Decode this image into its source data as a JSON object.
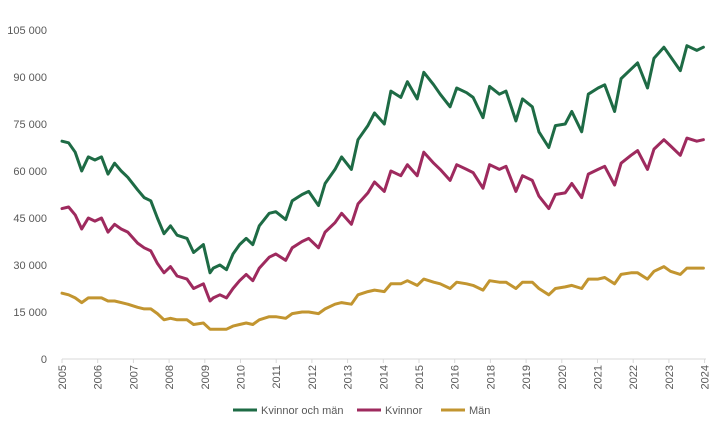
{
  "chart_data": {
    "type": "line",
    "title": "",
    "xlabel": "",
    "ylabel": "",
    "ylim": [
      0,
      105000
    ],
    "yticks": [
      "0",
      "15 000",
      "30 000",
      "45 000",
      "60 000",
      "75 000",
      "90 000",
      "105 000"
    ],
    "ytick_values": [
      0,
      15000,
      30000,
      45000,
      60000,
      75000,
      90000,
      105000
    ],
    "xticks": [
      "2005",
      "2006",
      "2007",
      "2008",
      "2009",
      "2010",
      "2011",
      "2012",
      "2013",
      "2014",
      "2015",
      "2016",
      "2018",
      "2019",
      "2020",
      "2021",
      "2022",
      "2023",
      "2024"
    ],
    "xlim": [
      2005,
      2024.58
    ],
    "grid": false,
    "legend": "bottom",
    "series": [
      {
        "name": "Kvinnor och män",
        "color": "#1e6b45",
        "x": [
          2005.0,
          2005.2,
          2005.4,
          2005.6,
          2005.8,
          2006.0,
          2006.2,
          2006.4,
          2006.6,
          2006.8,
          2007.0,
          2007.3,
          2007.5,
          2007.7,
          2007.9,
          2008.1,
          2008.3,
          2008.5,
          2008.8,
          2009.0,
          2009.3,
          2009.5,
          2009.6,
          2009.8,
          2010.0,
          2010.2,
          2010.4,
          2010.6,
          2010.8,
          2011.0,
          2011.3,
          2011.5,
          2011.8,
          2012.0,
          2012.3,
          2012.5,
          2012.8,
          2013.0,
          2013.3,
          2013.5,
          2013.8,
          2014.0,
          2014.3,
          2014.5,
          2014.8,
          2015.0,
          2015.3,
          2015.5,
          2015.8,
          2016.0,
          2016.3,
          2016.5,
          2016.8,
          2017.0,
          2017.3,
          2017.5,
          2017.8,
          2018.0,
          2018.3,
          2018.5,
          2018.8,
          2019.0,
          2019.3,
          2019.5,
          2019.8,
          2020.0,
          2020.3,
          2020.5,
          2020.8,
          2021.0,
          2021.3,
          2021.5,
          2021.8,
          2022.0,
          2022.3,
          2022.5,
          2022.8,
          2023.0,
          2023.3,
          2023.5,
          2023.8,
          2024.0,
          2024.3,
          2024.5
        ],
        "values": [
          69500,
          69000,
          66000,
          60000,
          64500,
          63500,
          64500,
          59000,
          62500,
          60000,
          58000,
          54000,
          51500,
          50500,
          45000,
          40000,
          42500,
          39500,
          38500,
          34000,
          36500,
          27500,
          29000,
          30000,
          28500,
          33500,
          36500,
          38500,
          36500,
          42500,
          46500,
          47000,
          44500,
          50500,
          52500,
          53500,
          49000,
          56000,
          60500,
          64500,
          60500,
          70000,
          74500,
          78500,
          75000,
          85500,
          83500,
          88500,
          83000,
          91500,
          87500,
          84500,
          80500,
          86500,
          85000,
          83500,
          77000,
          87000,
          84500,
          85500,
          76000,
          83000,
          80500,
          72500,
          67500,
          74500,
          75000,
          79000,
          72500,
          84500,
          86500,
          87500,
          79000,
          89500,
          92500,
          94500,
          86500,
          96000,
          99500,
          96500,
          92000,
          100000,
          98500,
          99500
        ]
      },
      {
        "name": "Kvinnor",
        "color": "#9e2a5e",
        "x": [
          2005.0,
          2005.2,
          2005.4,
          2005.6,
          2005.8,
          2006.0,
          2006.2,
          2006.4,
          2006.6,
          2006.8,
          2007.0,
          2007.3,
          2007.5,
          2007.7,
          2007.9,
          2008.1,
          2008.3,
          2008.5,
          2008.8,
          2009.0,
          2009.3,
          2009.5,
          2009.6,
          2009.8,
          2010.0,
          2010.2,
          2010.4,
          2010.6,
          2010.8,
          2011.0,
          2011.3,
          2011.5,
          2011.8,
          2012.0,
          2012.3,
          2012.5,
          2012.8,
          2013.0,
          2013.3,
          2013.5,
          2013.8,
          2014.0,
          2014.3,
          2014.5,
          2014.8,
          2015.0,
          2015.3,
          2015.5,
          2015.8,
          2016.0,
          2016.3,
          2016.5,
          2016.8,
          2017.0,
          2017.3,
          2017.5,
          2017.8,
          2018.0,
          2018.3,
          2018.5,
          2018.8,
          2019.0,
          2019.3,
          2019.5,
          2019.8,
          2020.0,
          2020.3,
          2020.5,
          2020.8,
          2021.0,
          2021.3,
          2021.5,
          2021.8,
          2022.0,
          2022.3,
          2022.5,
          2022.8,
          2023.0,
          2023.3,
          2023.5,
          2023.8,
          2024.0,
          2024.3,
          2024.5
        ],
        "values": [
          48000,
          48500,
          46000,
          41500,
          45000,
          44000,
          45000,
          40500,
          43000,
          41500,
          40500,
          37000,
          35500,
          34500,
          30500,
          27500,
          29500,
          26500,
          25500,
          22500,
          24000,
          18500,
          19500,
          20500,
          19500,
          22500,
          25000,
          27000,
          25000,
          29000,
          32500,
          33500,
          31500,
          35500,
          37500,
          38500,
          35500,
          40500,
          43500,
          46500,
          43000,
          49500,
          53000,
          56500,
          53500,
          60000,
          58500,
          62000,
          58500,
          66000,
          62500,
          60500,
          57000,
          62000,
          60500,
          59500,
          54500,
          62000,
          60500,
          61500,
          53500,
          58500,
          57000,
          52000,
          48000,
          52500,
          53000,
          56000,
          51500,
          59000,
          60500,
          61500,
          55500,
          62500,
          65000,
          66500,
          60500,
          67000,
          70000,
          68000,
          65000,
          70500,
          69500,
          70000
        ]
      },
      {
        "name": "Män",
        "color": "#c29530",
        "x": [
          2005.0,
          2005.2,
          2005.4,
          2005.6,
          2005.8,
          2006.0,
          2006.2,
          2006.4,
          2006.6,
          2006.8,
          2007.0,
          2007.3,
          2007.5,
          2007.7,
          2007.9,
          2008.1,
          2008.3,
          2008.5,
          2008.8,
          2009.0,
          2009.3,
          2009.5,
          2009.6,
          2009.8,
          2010.0,
          2010.2,
          2010.4,
          2010.6,
          2010.8,
          2011.0,
          2011.3,
          2011.5,
          2011.8,
          2012.0,
          2012.3,
          2012.5,
          2012.8,
          2013.0,
          2013.3,
          2013.5,
          2013.8,
          2014.0,
          2014.3,
          2014.5,
          2014.8,
          2015.0,
          2015.3,
          2015.5,
          2015.8,
          2016.0,
          2016.3,
          2016.5,
          2016.8,
          2017.0,
          2017.3,
          2017.5,
          2017.8,
          2018.0,
          2018.3,
          2018.5,
          2018.8,
          2019.0,
          2019.3,
          2019.5,
          2019.8,
          2020.0,
          2020.3,
          2020.5,
          2020.8,
          2021.0,
          2021.3,
          2021.5,
          2021.8,
          2022.0,
          2022.3,
          2022.5,
          2022.8,
          2023.0,
          2023.3,
          2023.5,
          2023.8,
          2024.0,
          2024.3,
          2024.5
        ],
        "values": [
          21000,
          20500,
          19500,
          18000,
          19500,
          19500,
          19500,
          18500,
          18500,
          18000,
          17500,
          16500,
          16000,
          16000,
          14500,
          12500,
          13000,
          12500,
          12500,
          11000,
          11500,
          9500,
          9500,
          9500,
          9500,
          10500,
          11000,
          11500,
          11000,
          12500,
          13500,
          13500,
          13000,
          14500,
          15000,
          15000,
          14500,
          16000,
          17500,
          18000,
          17500,
          20500,
          21500,
          22000,
          21500,
          24000,
          24000,
          25000,
          23500,
          25500,
          24500,
          24000,
          22500,
          24500,
          24000,
          23500,
          22000,
          25000,
          24500,
          24500,
          22500,
          24500,
          24500,
          22500,
          20500,
          22500,
          23000,
          23500,
          22500,
          25500,
          25500,
          26000,
          24000,
          27000,
          27500,
          27500,
          25500,
          28000,
          29500,
          28000,
          27000,
          29000,
          29000,
          29000
        ]
      }
    ]
  }
}
